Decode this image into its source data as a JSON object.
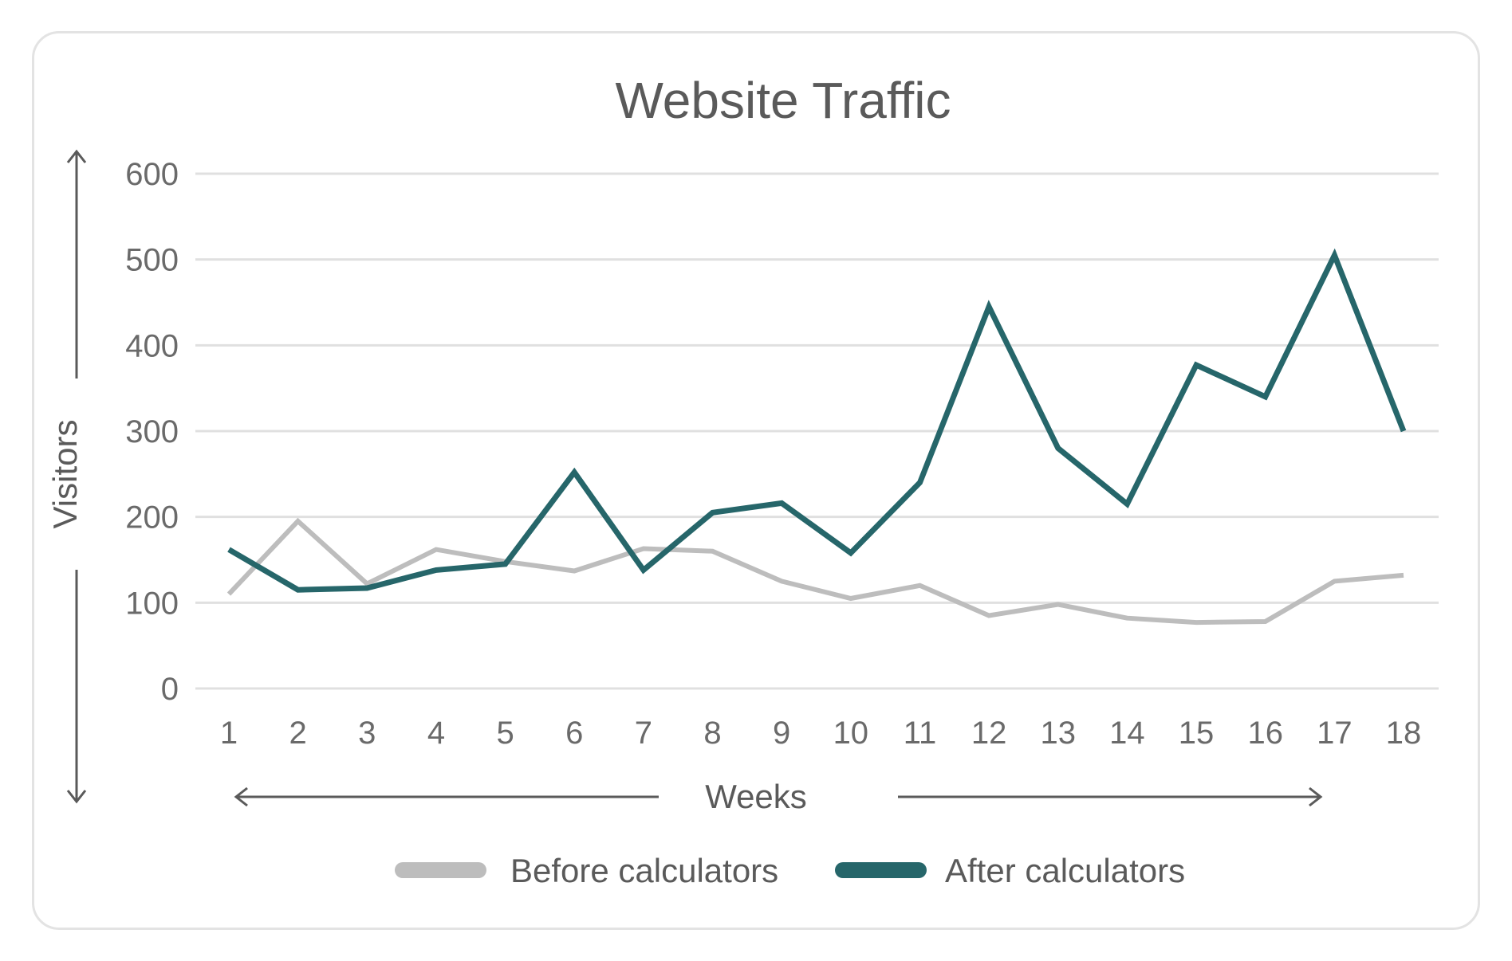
{
  "chart_data": {
    "type": "line",
    "title": "Website Traffic",
    "xlabel": "Weeks",
    "ylabel": "Visitors",
    "x": [
      1,
      2,
      3,
      4,
      5,
      6,
      7,
      8,
      9,
      10,
      11,
      12,
      13,
      14,
      15,
      16,
      17,
      18
    ],
    "ylim": [
      0,
      600
    ],
    "yticks": [
      0,
      100,
      200,
      300,
      400,
      500,
      600
    ],
    "grid": true,
    "legend_position": "bottom",
    "series": [
      {
        "name": "Before calculators",
        "color": "#bdbdbd",
        "values": [
          110,
          195,
          122,
          162,
          148,
          137,
          163,
          160,
          125,
          105,
          120,
          85,
          98,
          82,
          77,
          78,
          125,
          132
        ]
      },
      {
        "name": "After calculators",
        "color": "#26666a",
        "values": [
          162,
          115,
          117,
          138,
          145,
          252,
          138,
          205,
          216,
          158,
          240,
          445,
          280,
          215,
          377,
          340,
          505,
          300
        ]
      }
    ]
  }
}
